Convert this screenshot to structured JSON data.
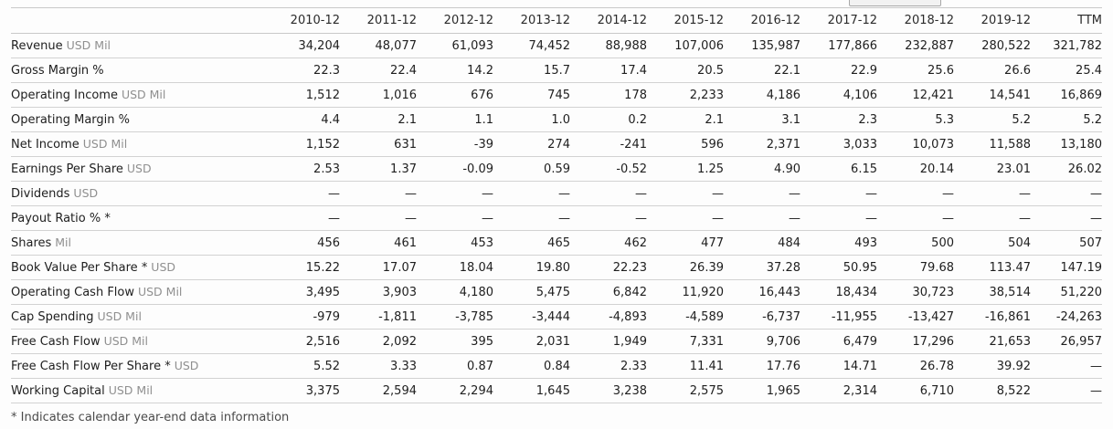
{
  "table": {
    "columns": [
      "2010-12",
      "2011-12",
      "2012-12",
      "2013-12",
      "2014-12",
      "2015-12",
      "2016-12",
      "2017-12",
      "2018-12",
      "2019-12",
      "TTM"
    ],
    "rows": [
      {
        "label": "Revenue",
        "unit": "USD Mil",
        "values": [
          "34,204",
          "48,077",
          "61,093",
          "74,452",
          "88,988",
          "107,006",
          "135,987",
          "177,866",
          "232,887",
          "280,522",
          "321,782"
        ]
      },
      {
        "label": "Gross Margin %",
        "unit": "",
        "values": [
          "22.3",
          "22.4",
          "14.2",
          "15.7",
          "17.4",
          "20.5",
          "22.1",
          "22.9",
          "25.6",
          "26.6",
          "25.4"
        ]
      },
      {
        "label": "Operating Income",
        "unit": "USD Mil",
        "values": [
          "1,512",
          "1,016",
          "676",
          "745",
          "178",
          "2,233",
          "4,186",
          "4,106",
          "12,421",
          "14,541",
          "16,869"
        ]
      },
      {
        "label": "Operating Margin %",
        "unit": "",
        "values": [
          "4.4",
          "2.1",
          "1.1",
          "1.0",
          "0.2",
          "2.1",
          "3.1",
          "2.3",
          "5.3",
          "5.2",
          "5.2"
        ]
      },
      {
        "label": "Net Income",
        "unit": "USD Mil",
        "values": [
          "1,152",
          "631",
          "-39",
          "274",
          "-241",
          "596",
          "2,371",
          "3,033",
          "10,073",
          "11,588",
          "13,180"
        ]
      },
      {
        "label": "Earnings Per Share",
        "unit": "USD",
        "values": [
          "2.53",
          "1.37",
          "-0.09",
          "0.59",
          "-0.52",
          "1.25",
          "4.90",
          "6.15",
          "20.14",
          "23.01",
          "26.02"
        ]
      },
      {
        "label": "Dividends",
        "unit": "USD",
        "values": [
          "—",
          "—",
          "—",
          "—",
          "—",
          "—",
          "—",
          "—",
          "—",
          "—",
          "—"
        ]
      },
      {
        "label": "Payout Ratio % *",
        "unit": "",
        "values": [
          "—",
          "—",
          "—",
          "—",
          "—",
          "—",
          "—",
          "—",
          "—",
          "—",
          "—"
        ]
      },
      {
        "label": "Shares",
        "unit": "Mil",
        "values": [
          "456",
          "461",
          "453",
          "465",
          "462",
          "477",
          "484",
          "493",
          "500",
          "504",
          "507"
        ]
      },
      {
        "label": "Book Value Per Share *",
        "unit": "USD",
        "values": [
          "15.22",
          "17.07",
          "18.04",
          "19.80",
          "22.23",
          "26.39",
          "37.28",
          "50.95",
          "79.68",
          "113.47",
          "147.19"
        ]
      },
      {
        "label": "Operating Cash Flow",
        "unit": "USD Mil",
        "values": [
          "3,495",
          "3,903",
          "4,180",
          "5,475",
          "6,842",
          "11,920",
          "16,443",
          "18,434",
          "30,723",
          "38,514",
          "51,220"
        ]
      },
      {
        "label": "Cap Spending",
        "unit": "USD Mil",
        "values": [
          "-979",
          "-1,811",
          "-3,785",
          "-3,444",
          "-4,893",
          "-4,589",
          "-6,737",
          "-11,955",
          "-13,427",
          "-16,861",
          "-24,263"
        ]
      },
      {
        "label": "Free Cash Flow",
        "unit": "USD Mil",
        "values": [
          "2,516",
          "2,092",
          "395",
          "2,031",
          "1,949",
          "7,331",
          "9,706",
          "6,479",
          "17,296",
          "21,653",
          "26,957"
        ]
      },
      {
        "label": "Free Cash Flow Per Share *",
        "unit": "USD",
        "values": [
          "5.52",
          "3.33",
          "0.87",
          "0.84",
          "2.33",
          "11.41",
          "17.76",
          "14.71",
          "26.78",
          "39.92",
          "—"
        ]
      },
      {
        "label": "Working Capital",
        "unit": "USD Mil",
        "values": [
          "3,375",
          "2,594",
          "2,294",
          "1,645",
          "3,238",
          "2,575",
          "1,965",
          "2,314",
          "6,710",
          "8,522",
          "—"
        ]
      }
    ],
    "footnote": "* Indicates calendar year-end data information"
  },
  "colors": {
    "separator": "#c9c9c9",
    "label_text": "#1e1e1e",
    "unit_text": "#8f8f8f",
    "footnote_text": "#4a4a4a",
    "background": "#fdfdfd"
  }
}
